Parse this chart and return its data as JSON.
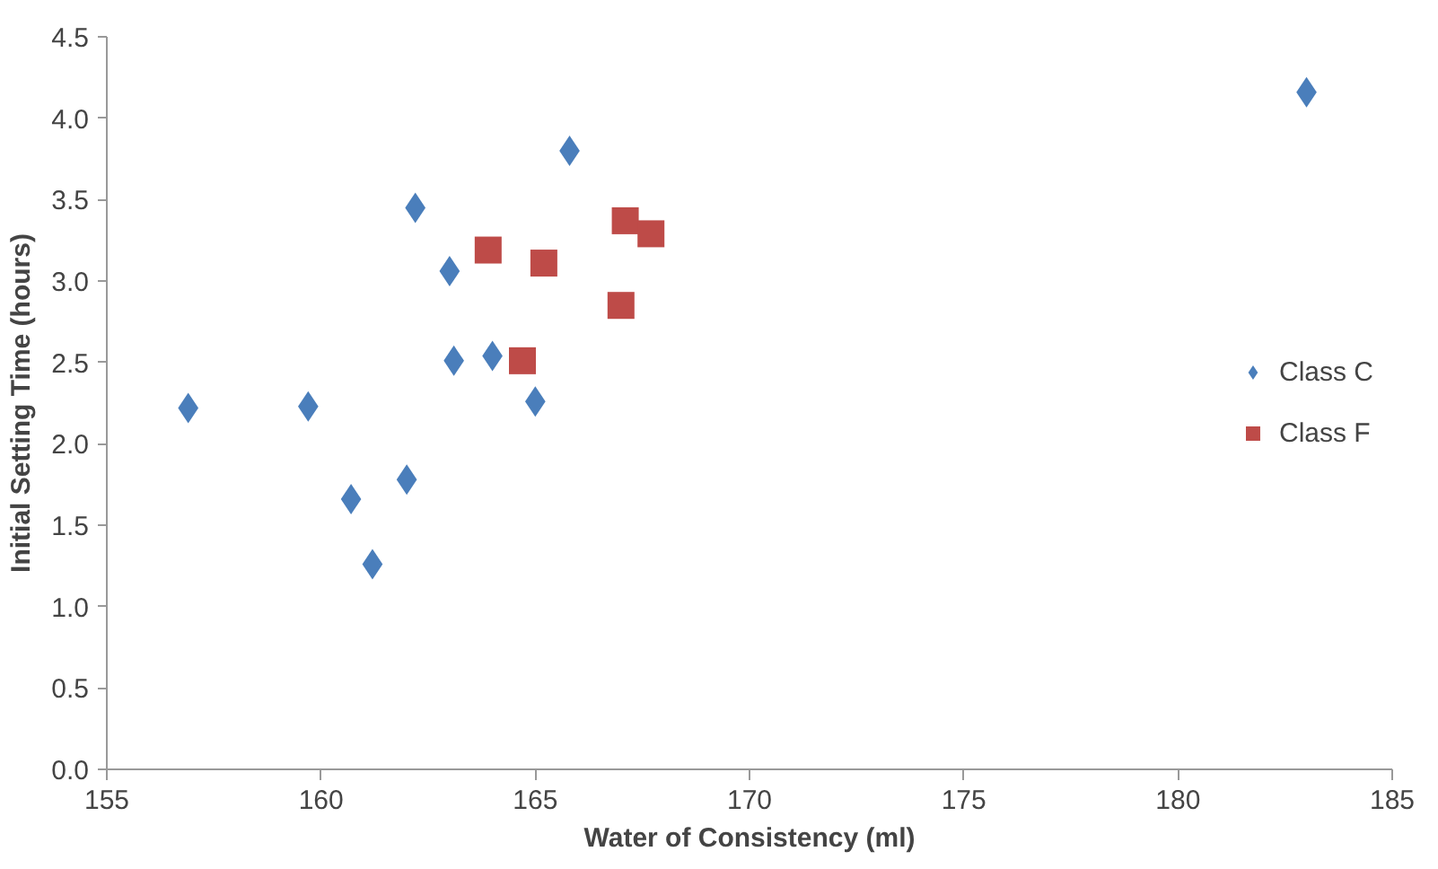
{
  "chart_data": {
    "type": "scatter",
    "xlabel": "Water of Consistency (ml)",
    "ylabel": "Initial Setting Time (hours)",
    "xlim": [
      155,
      185
    ],
    "xticks": [
      155,
      160,
      165,
      170,
      175,
      180,
      185
    ],
    "ylim": [
      0,
      4.5
    ],
    "yticks": [
      {
        "value": 0,
        "label": "0.0"
      },
      {
        "value": 0.5,
        "label": "0.5"
      },
      {
        "value": 1,
        "label": "1.0"
      },
      {
        "value": 1.5,
        "label": "1.5"
      },
      {
        "value": 2,
        "label": "2.0"
      },
      {
        "value": 2.5,
        "label": "2.5"
      },
      {
        "value": 3,
        "label": "3.0"
      },
      {
        "value": 3.5,
        "label": "3.5"
      },
      {
        "value": 4,
        "label": "4.0"
      },
      {
        "value": 4.5,
        "label": "4.5"
      }
    ],
    "grid": false,
    "legend": "right",
    "series": [
      {
        "name": "Class C",
        "color": "#4a7ebb",
        "marker": "diamond",
        "x": [
          156.9,
          159.7,
          160.7,
          161.2,
          162.0,
          162.2,
          163.0,
          163.1,
          164.0,
          165.0,
          165.8,
          183.0
        ],
        "values": [
          2.22,
          2.23,
          1.66,
          1.26,
          1.78,
          3.45,
          3.06,
          2.51,
          2.54,
          2.26,
          3.8,
          4.16
        ]
      },
      {
        "name": "Class F",
        "color": "#be4b48",
        "marker": "square",
        "x": [
          163.9,
          165.2,
          164.7,
          167.1,
          167.7,
          167.0
        ],
        "values": [
          3.19,
          3.11,
          2.51,
          3.37,
          3.29,
          2.85
        ]
      }
    ]
  }
}
